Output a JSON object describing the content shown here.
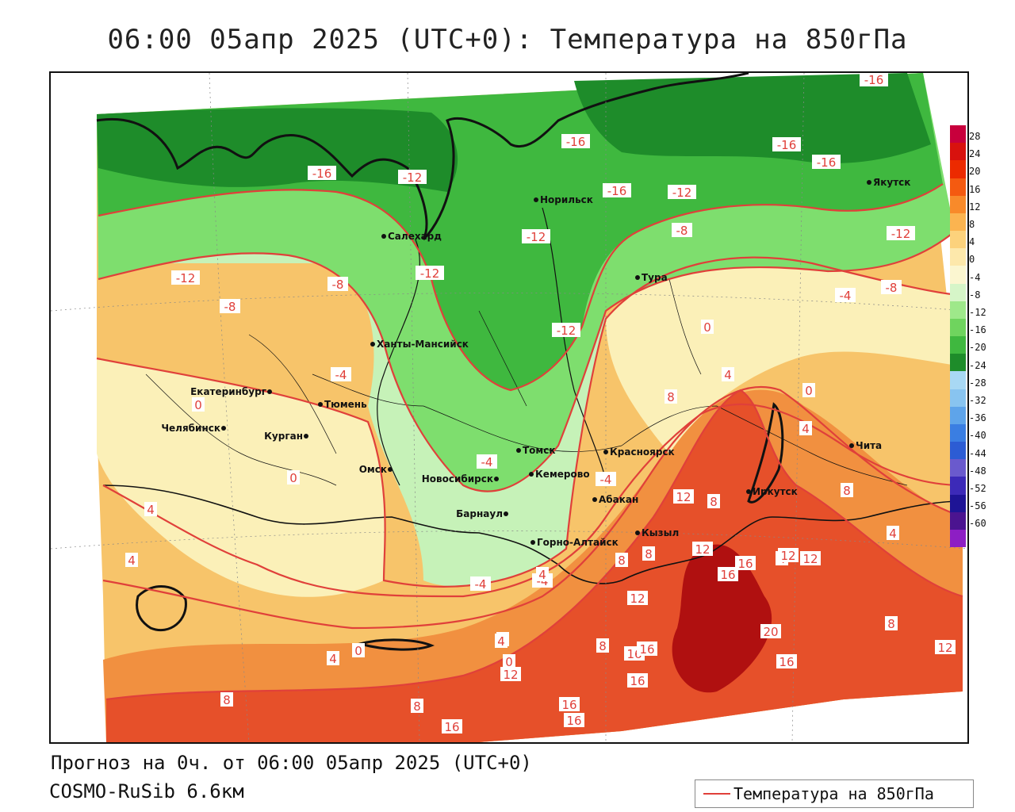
{
  "title": "06:00 05апр 2025 (UTC+0): Температура на 850гПа",
  "footer": {
    "forecast_line": "Прогноз на 0ч. от 06:00 05апр 2025 (UTC+0)",
    "model_line": "COSMO-RuSib 6.6км",
    "legend_label": "Температура на 850гПа"
  },
  "colors": {
    "contour": "#e0403a",
    "very_cold": "#1e8c2a",
    "cold": "#3fb83f",
    "cool": "#7ede6e",
    "mild_cool": "#c6f2b8",
    "neutral": "#fbf0b8",
    "warm": "#f7c46a",
    "hot": "#f19040",
    "very_hot": "#e6502a",
    "extreme": "#b01010"
  },
  "colorbar": {
    "ticks": [
      "28",
      "24",
      "20",
      "16",
      "12",
      "8",
      "4",
      "0",
      "-4",
      "-8",
      "-12",
      "-16",
      "-20",
      "-24",
      "-28",
      "-32",
      "-36",
      "-40",
      "-44",
      "-48",
      "-52",
      "-56",
      "-60"
    ],
    "colors": [
      "#c8003c",
      "#d8120e",
      "#ec2a00",
      "#f45a10",
      "#f88a2a",
      "#fbb450",
      "#fcd27c",
      "#fde8ab",
      "#fbf6d0",
      "#d6f5c8",
      "#9ee88a",
      "#6fd45e",
      "#3fb83f",
      "#1e8c2a",
      "#a8d8f4",
      "#88c4f0",
      "#5ea4ea",
      "#3a7ee2",
      "#2c5cd4",
      "#6a5acd",
      "#3c2ab8",
      "#1e1496",
      "#4b1490",
      "#8d1ec4"
    ]
  },
  "cities": [
    {
      "name": "Норильск"
    },
    {
      "name": "Салехард"
    },
    {
      "name": "Якутск"
    },
    {
      "name": "Тура"
    },
    {
      "name": "Ханты-Мансийск"
    },
    {
      "name": "Екатеринбург"
    },
    {
      "name": "Тюмень"
    },
    {
      "name": "Челябинск"
    },
    {
      "name": "Курган"
    },
    {
      "name": "Омск"
    },
    {
      "name": "Новосибирск"
    },
    {
      "name": "Томск"
    },
    {
      "name": "Кемерово"
    },
    {
      "name": "Красноярск"
    },
    {
      "name": "Барнаул"
    },
    {
      "name": "Абакан"
    },
    {
      "name": "Иркутск"
    },
    {
      "name": "Чита"
    },
    {
      "name": "Кызыл"
    },
    {
      "name": "Горно-Алтайск"
    }
  ],
  "contour_labels": [
    "-16",
    "-16",
    "-16",
    "-16",
    "-16",
    "-16",
    "-12",
    "-12",
    "-12",
    "-12",
    "-12",
    "-12",
    "-12",
    "-8",
    "-8",
    "-8",
    "-8",
    "-4",
    "-4",
    "-4",
    "-4",
    "-4",
    "-4",
    "0",
    "0",
    "0",
    "0",
    "0",
    "0",
    "4",
    "4",
    "4",
    "4",
    "4",
    "4",
    "4",
    "4",
    "4",
    "4",
    "8",
    "8",
    "8",
    "8",
    "8",
    "8",
    "8",
    "8",
    "8",
    "12",
    "12",
    "12",
    "12",
    "12",
    "12",
    "12",
    "16",
    "16",
    "16",
    "16",
    "16",
    "16",
    "16",
    "16",
    "16",
    "20"
  ]
}
